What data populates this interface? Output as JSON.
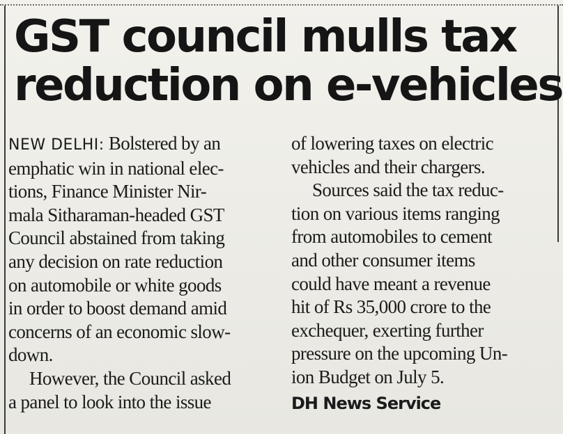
{
  "article": {
    "headline_lines": [
      "GST council mulls tax",
      "reduction on e-vehicles"
    ],
    "dateline": "NEW DELHI:",
    "left_column_lines": [
      "Bolstered by an",
      "emphatic win in national elec-",
      "tions, Finance Minister Nir-",
      "mala Sitharaman-headed GST",
      "Council abstained from taking",
      "any decision on rate reduction",
      "on automobile or white goods",
      "in order to boost demand amid",
      "concerns of an economic slow-",
      "down.",
      "However, the Council asked",
      "a panel to look into the issue"
    ],
    "right_column_lines": [
      "of lowering taxes on electric",
      "vehicles and their chargers.",
      "Sources said the tax reduc-",
      "tion on various items ranging",
      "from automobiles to cement",
      "and other consumer items",
      "could have meant a revenue",
      "hit of Rs 35,000 crore to the",
      "exchequer, exerting further",
      "pressure on the upcoming Un-",
      "ion Budget on July 5."
    ],
    "credit": "DH News Service"
  }
}
